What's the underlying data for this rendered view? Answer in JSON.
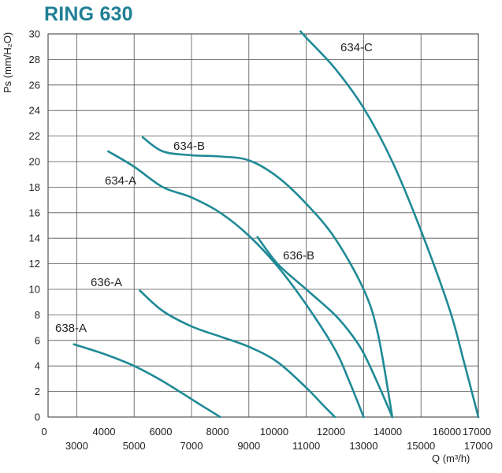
{
  "title": "RING 630",
  "chart_data": {
    "type": "line",
    "title": "RING 630",
    "ylabel": "Ps (mm/H₂O)",
    "xlabel": "Q (m³/h)",
    "ylim": [
      0,
      30
    ],
    "xlim": [
      2000,
      17000
    ],
    "yticks": [
      0,
      2,
      4,
      6,
      8,
      10,
      12,
      14,
      16,
      18,
      20,
      22,
      24,
      26,
      28,
      30
    ],
    "xticks_top": [
      "0",
      "4000",
      "6000",
      "8000",
      "10000",
      "12000",
      "14000",
      "16000",
      "17000"
    ],
    "xticks_bottom": [
      "3000",
      "5000",
      "7000",
      "9000",
      "11000",
      "13000",
      "15000",
      "17000"
    ],
    "grid": true,
    "line_color": "#1f8a96",
    "series": [
      {
        "name": "638-A",
        "x": [
          2900,
          4000,
          5000,
          6000,
          7000,
          7500,
          8000
        ],
        "y": [
          5.7,
          4.9,
          4.0,
          2.8,
          1.4,
          0.7,
          0.0
        ]
      },
      {
        "name": "636-A",
        "x": [
          5200,
          6000,
          7000,
          8000,
          9000,
          10000,
          11000,
          11600,
          12000
        ],
        "y": [
          9.9,
          8.3,
          7.1,
          6.3,
          5.5,
          4.3,
          2.3,
          0.9,
          0.0
        ]
      },
      {
        "name": "636-B",
        "x": [
          9300,
          10000,
          11000,
          12000,
          12600,
          13000,
          13500,
          14000
        ],
        "y": [
          14.1,
          12.0,
          10.0,
          8.0,
          6.4,
          5.0,
          2.6,
          0.0
        ]
      },
      {
        "name": "634-A",
        "x": [
          4100,
          5000,
          6000,
          7000,
          8000,
          9000,
          10000,
          11000,
          12000,
          12500,
          13000
        ],
        "y": [
          20.8,
          19.6,
          18.0,
          17.2,
          16.0,
          14.2,
          11.8,
          8.8,
          5.3,
          2.8,
          0.0
        ]
      },
      {
        "name": "634-B",
        "x": [
          5300,
          6000,
          7000,
          8000,
          9000,
          10000,
          11000,
          12000,
          13000,
          13500,
          14000
        ],
        "y": [
          21.9,
          20.8,
          20.5,
          20.4,
          20.1,
          18.8,
          16.7,
          14.0,
          10.0,
          6.5,
          0.0
        ]
      },
      {
        "name": "634-C",
        "x": [
          10800,
          11000,
          12000,
          13000,
          14000,
          15000,
          16000,
          16500,
          17000
        ],
        "y": [
          30.2,
          29.7,
          27.3,
          24.2,
          20.0,
          14.6,
          8.4,
          4.3,
          0.0
        ]
      }
    ]
  }
}
